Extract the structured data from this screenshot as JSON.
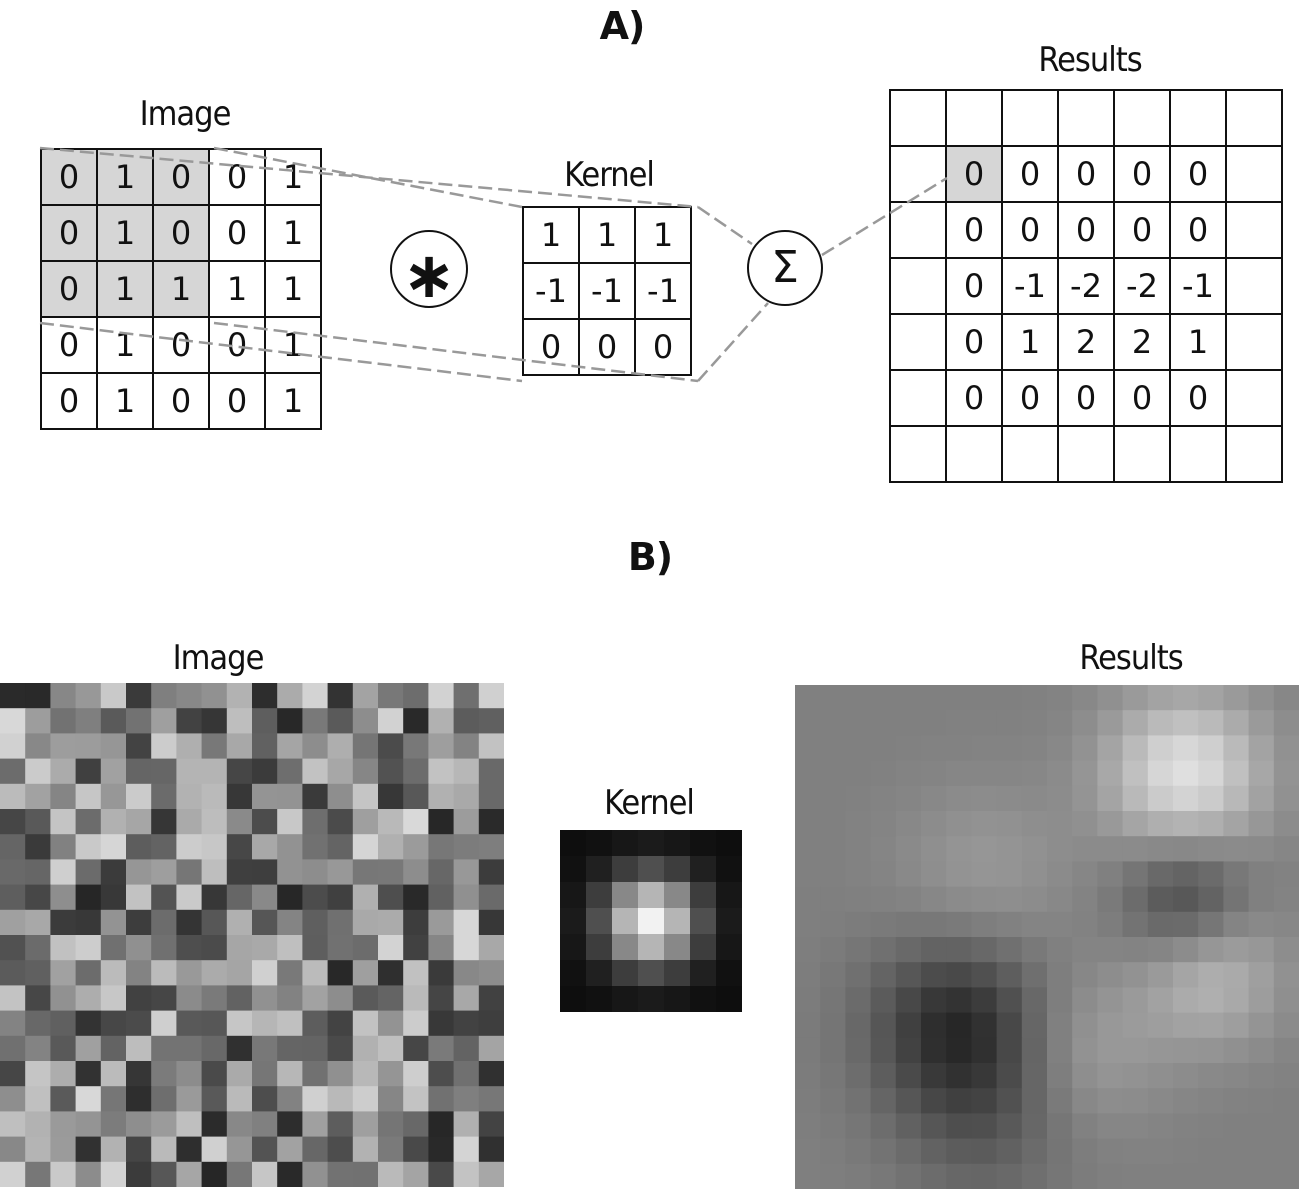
{
  "section_a": {
    "title": "A)",
    "image_label": "Image",
    "kernel_label": "Kernel",
    "results_label": "Results",
    "conv_symbol": "∗",
    "sum_symbol": "Σ",
    "image": [
      [
        0,
        1,
        0,
        0,
        1
      ],
      [
        0,
        1,
        0,
        0,
        1
      ],
      [
        0,
        1,
        1,
        1,
        1
      ],
      [
        0,
        1,
        0,
        0,
        1
      ],
      [
        0,
        1,
        0,
        0,
        1
      ]
    ],
    "kernel": [
      [
        1,
        1,
        1
      ],
      [
        -1,
        -1,
        -1
      ],
      [
        0,
        0,
        0
      ]
    ],
    "results": [
      [
        "",
        "",
        "",
        "",
        "",
        "",
        ""
      ],
      [
        "",
        "0",
        "0",
        "0",
        "0",
        "0",
        ""
      ],
      [
        "",
        "0",
        "0",
        "0",
        "0",
        "0",
        ""
      ],
      [
        "",
        "0",
        "-1",
        "-2",
        "-2",
        "-1",
        ""
      ],
      [
        "",
        "0",
        "1",
        "2",
        "2",
        "1",
        ""
      ],
      [
        "",
        "0",
        "0",
        "0",
        "0",
        "0",
        ""
      ],
      [
        "",
        "",
        "",
        "",
        "",
        "",
        ""
      ]
    ]
  },
  "section_b": {
    "title": "B)",
    "image_label": "Image",
    "kernel_label": "Kernel",
    "results_label": "Results"
  }
}
